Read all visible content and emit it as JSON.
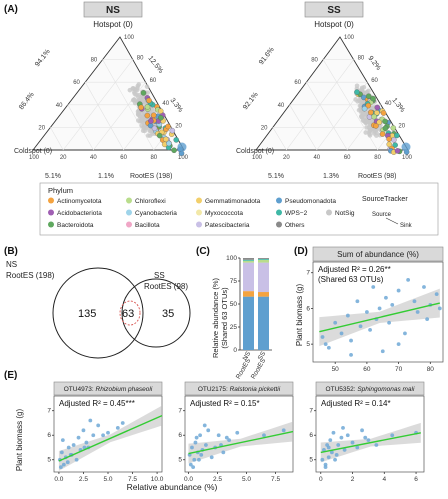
{
  "panels": {
    "A": "(A)",
    "B": "(B)",
    "C": "(C)",
    "D": "(D)",
    "E": "(E)"
  },
  "ternary": {
    "ns": {
      "strip": "NS",
      "top": "Hotspot (0)",
      "left": "Coldspot (0)",
      "right": "RootES (198)",
      "pct_left_outer": "86.4%",
      "pct_left_inner": "94.1%",
      "pct_right_outer": "12.5%",
      "pct_right_inner": "3.3%",
      "pct_bottom_left": "5.1%",
      "pct_bottom_right": "1.1%"
    },
    "ss": {
      "strip": "SS",
      "top": "Hotspot (0)",
      "left": "Coldspot (0)",
      "right": "RootES (98)",
      "pct_left_outer": "92.1%",
      "pct_left_inner": "91.6%",
      "pct_right_outer": "9.2%",
      "pct_right_inner": "1.3%",
      "pct_bottom_left": "5.1%",
      "pct_bottom_right": "1.3%"
    },
    "ticks": [
      "20",
      "40",
      "60",
      "80",
      "100"
    ]
  },
  "legend": {
    "title": "Phylum",
    "items": [
      {
        "label": "Actinomycetota",
        "color": "#f4a340"
      },
      {
        "label": "Chloroflexi",
        "color": "#b9dd8c"
      },
      {
        "label": "Gemmatimonadota",
        "color": "#f2cf6b"
      },
      {
        "label": "Pseudomonadota",
        "color": "#5f9fcf"
      },
      {
        "label": "Acidobacteriota",
        "color": "#a05fb3"
      },
      {
        "label": "Cyanobacteria",
        "color": "#9fd4ea"
      },
      {
        "label": "Myxococcota",
        "color": "#f2e8a8"
      },
      {
        "label": "WPS−2",
        "color": "#3fb8a6"
      },
      {
        "label": "NotSig",
        "color": "#c8c8c8"
      },
      {
        "label": "Bacteroidota",
        "color": "#5fa85f"
      },
      {
        "label": "Bacillota",
        "color": "#f0a6c6"
      },
      {
        "label": "Patescibacteria",
        "color": "#c9c0e6"
      },
      {
        "label": "Others",
        "color": "#8a8a8a"
      }
    ],
    "source_title": "SourceTracker",
    "source": "Source",
    "sink": "Sink"
  },
  "venn": {
    "ns_label_1": "NS",
    "ns_label_2": "RootES (198)",
    "ss_label_1": "SS",
    "ss_label_2": "RootES (98)",
    "left_only": "135",
    "shared": "63",
    "right_only": "35"
  },
  "chart_data": [
    {
      "type": "bar",
      "panel": "C",
      "ylabel": "Relative abundance (%)",
      "ylabel_sub": "(Shared 63 OTUs)",
      "categories": [
        "NS RootES",
        "SS RootES"
      ],
      "category_lines": [
        [
          "NS",
          "RootES"
        ],
        [
          "SS",
          "RootES"
        ]
      ],
      "ylim": [
        0,
        100
      ],
      "yticks": [
        0,
        25,
        50,
        75,
        100
      ],
      "stacked": true,
      "series": [
        {
          "name": "Pseudomonadota",
          "color": "#5f9fcf",
          "values": [
            58,
            58
          ]
        },
        {
          "name": "Actinomycetota",
          "color": "#f4a340",
          "values": [
            6,
            5
          ]
        },
        {
          "name": "Patescibacteria",
          "color": "#c9c0e6",
          "values": [
            31,
            32
          ]
        },
        {
          "name": "Chloroflexi",
          "color": "#b9dd8c",
          "values": [
            2,
            3
          ]
        },
        {
          "name": "WPS−2",
          "color": "#3fb8a6",
          "values": [
            1,
            1
          ]
        },
        {
          "name": "Others",
          "color": "#8a8a8a",
          "values": [
            2,
            1
          ]
        }
      ]
    },
    {
      "type": "scatter",
      "panel": "D",
      "title": "Sum of abundance (%)",
      "annotation_1": "Adjusted R² = 0.26**",
      "annotation_2": "(Shared 63 OTUs)",
      "ylabel": "Plant biomass (g)",
      "xlim": [
        43,
        84
      ],
      "ylim": [
        4.5,
        7.3
      ],
      "xticks": [
        50,
        60,
        70,
        80
      ],
      "yticks": [
        5,
        6,
        7
      ],
      "x": [
        46,
        47,
        48,
        50,
        52,
        54,
        55,
        57,
        58,
        60,
        61,
        62,
        63,
        64,
        65,
        66,
        67,
        68,
        70,
        72,
        73,
        75,
        76,
        78,
        80,
        82,
        83,
        55,
        70,
        79
      ],
      "y": [
        5.2,
        5.0,
        4.9,
        5.6,
        5.3,
        5.8,
        5.1,
        6.2,
        5.5,
        5.9,
        5.4,
        6.6,
        5.7,
        6.0,
        4.8,
        6.3,
        5.6,
        6.1,
        6.5,
        5.3,
        6.8,
        6.2,
        5.9,
        6.6,
        6.1,
        6.4,
        6.0,
        4.7,
        5.0,
        5.7
      ],
      "fit": [
        [
          45,
          5.35
        ],
        [
          83,
          6.15
        ]
      ]
    },
    {
      "type": "scatter",
      "panel": "E1",
      "title_prefix": "OTU4973: ",
      "title_species": "Rhizobium phaseoli",
      "annotation": "Adjusted R² = 0.45***",
      "ylabel": "Plant biomass (g)",
      "xlim": [
        -0.5,
        10.5
      ],
      "ylim": [
        4.5,
        7.6
      ],
      "xticks": [
        0,
        2.5,
        5,
        7.5,
        10
      ],
      "xticklabels": [
        "0.0",
        "2.5",
        "5.0",
        "7.5",
        "10.0"
      ],
      "yticks": [
        5,
        6,
        7
      ],
      "x": [
        0.1,
        0.3,
        0.5,
        0.7,
        1.0,
        1.2,
        1.5,
        1.8,
        2.0,
        2.2,
        2.5,
        2.8,
        3.0,
        3.5,
        4.0,
        4.5,
        5.0,
        6.0,
        6.5,
        0.2,
        0.4,
        0.9,
        1.3,
        2.6,
        3.2
      ],
      "y": [
        5.0,
        5.3,
        4.8,
        5.1,
        5.5,
        5.2,
        5.6,
        5.0,
        5.9,
        5.4,
        6.2,
        5.7,
        5.5,
        6.0,
        6.4,
        6.0,
        6.1,
        6.3,
        6.5,
        4.7,
        5.8,
        4.9,
        5.2,
        5.5,
        6.6
      ],
      "fit": [
        [
          0,
          4.95
        ],
        [
          10.5,
          6.8
        ]
      ]
    },
    {
      "type": "scatter",
      "panel": "E2",
      "title_prefix": "OTU2175: ",
      "title_species": "Ralstonia pickettii",
      "annotation": "Adjusted R² = 0.15*",
      "xlim": [
        -0.3,
        9
      ],
      "ylim": [
        4.5,
        7.6
      ],
      "xticks": [
        0,
        2.5,
        5,
        7.5
      ],
      "xticklabels": [
        "0.0",
        "2.5",
        "5.0",
        "7.5"
      ],
      "yticks": [
        5,
        6,
        7
      ],
      "x": [
        0.1,
        0.2,
        0.3,
        0.5,
        0.6,
        0.8,
        1.0,
        1.2,
        1.5,
        1.7,
        2.0,
        2.3,
        2.6,
        3.0,
        3.5,
        4.2,
        0.4,
        0.7,
        1.1,
        1.4,
        2.8,
        6.5,
        8.2,
        0.9,
        3.3
      ],
      "y": [
        5.2,
        4.8,
        5.5,
        5.0,
        5.7,
        5.3,
        6.0,
        5.4,
        5.6,
        6.2,
        5.1,
        5.5,
        6.0,
        5.3,
        5.8,
        6.1,
        4.7,
        5.9,
        5.2,
        6.4,
        5.6,
        6.0,
        6.2,
        5.0,
        5.9
      ],
      "fit": [
        [
          0,
          5.25
        ],
        [
          9,
          6.15
        ]
      ]
    },
    {
      "type": "scatter",
      "panel": "E3",
      "title_prefix": "OTU5352: ",
      "title_species": "Sphingomonas mali",
      "annotation": "Adjusted R² = 0.14*",
      "xlim": [
        -0.3,
        6.5
      ],
      "ylim": [
        4.5,
        7.6
      ],
      "xticks": [
        0,
        2,
        4,
        6
      ],
      "xticklabels": [
        "0",
        "2",
        "4",
        "6"
      ],
      "yticks": [
        5,
        6,
        7
      ],
      "x": [
        0.1,
        0.2,
        0.3,
        0.4,
        0.5,
        0.6,
        0.7,
        0.8,
        1.0,
        1.1,
        1.3,
        1.5,
        1.7,
        2.0,
        2.3,
        2.6,
        3.0,
        3.5,
        4.5,
        6.0,
        0.3,
        0.9,
        1.4,
        2.8,
        0.5
      ],
      "y": [
        5.0,
        5.4,
        4.8,
        5.6,
        5.1,
        5.8,
        5.3,
        6.1,
        5.2,
        5.6,
        5.9,
        5.4,
        6.0,
        5.7,
        5.5,
        6.2,
        5.8,
        5.6,
        6.0,
        6.1,
        4.7,
        5.0,
        6.3,
        5.9,
        5.5
      ],
      "fit": [
        [
          0,
          5.3
        ],
        [
          6.3,
          6.1
        ]
      ]
    }
  ],
  "e_xlabel": "Relative abundance (%)"
}
